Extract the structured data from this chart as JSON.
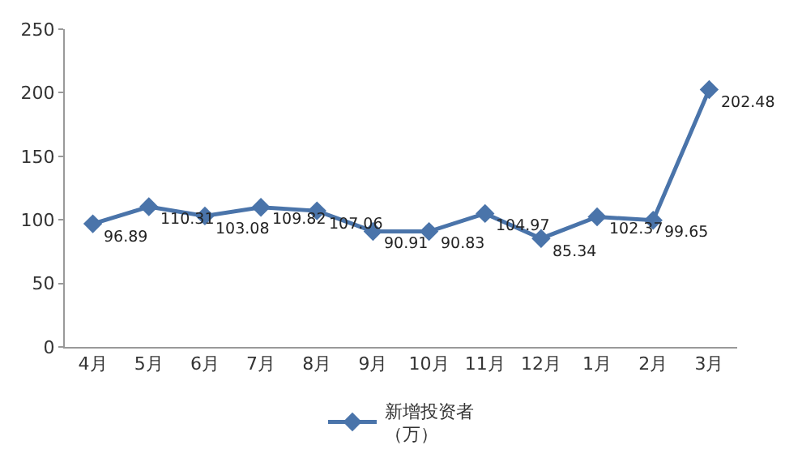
{
  "chart_data": {
    "type": "line",
    "categories": [
      "4月",
      "5月",
      "6月",
      "7月",
      "8月",
      "9月",
      "10月",
      "11月",
      "12月",
      "1月",
      "2月",
      "3月"
    ],
    "series": [
      {
        "name": "新增投资者（万）",
        "color": "#4a74aa",
        "values": [
          96.89,
          110.31,
          103.08,
          109.82,
          107.06,
          90.91,
          90.83,
          104.97,
          85.34,
          102.37,
          99.65,
          202.48
        ]
      }
    ],
    "ylim": [
      0,
      250
    ],
    "yticks": [
      0,
      50,
      100,
      150,
      200,
      250
    ],
    "grid": false,
    "legend": "bottom",
    "marker": "diamond",
    "line_style": "solid",
    "data_labels": true
  }
}
